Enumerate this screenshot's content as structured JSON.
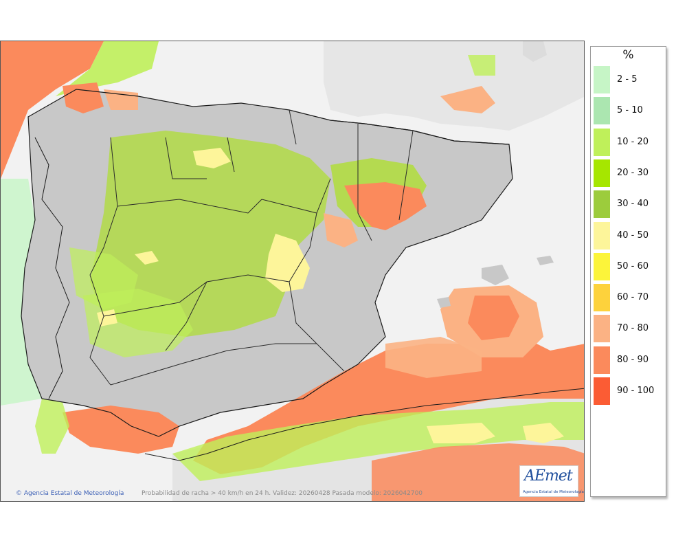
{
  "legend": {
    "title": "%",
    "items": [
      {
        "label": "2 - 5",
        "color": "#c6f5c6"
      },
      {
        "label": "5 - 10",
        "color": "#abe6b0"
      },
      {
        "label": "10 - 20",
        "color": "#bff05a"
      },
      {
        "label": "20 - 30",
        "color": "#a6e600"
      },
      {
        "label": "30 - 40",
        "color": "#9ccc3c"
      },
      {
        "label": "40 - 50",
        "color": "#fdf59a"
      },
      {
        "label": "50 - 60",
        "color": "#fcf43a"
      },
      {
        "label": "60 - 70",
        "color": "#fdd23c"
      },
      {
        "label": "70 - 80",
        "color": "#fbb284"
      },
      {
        "label": "80 - 90",
        "color": "#fb8a5c"
      },
      {
        "label": "90 - 100",
        "color": "#fb5c34"
      }
    ]
  },
  "footer": {
    "credit": "Agencia Estatal de Meteorología",
    "caption": "Probabilidad de racha > 40 km/h en 24 h. Validez: 20260428 Pasada modelo: 2026042700"
  },
  "logo": {
    "mark": "AEmet",
    "subtitle": "Agencia Estatal de Meteorología"
  }
}
